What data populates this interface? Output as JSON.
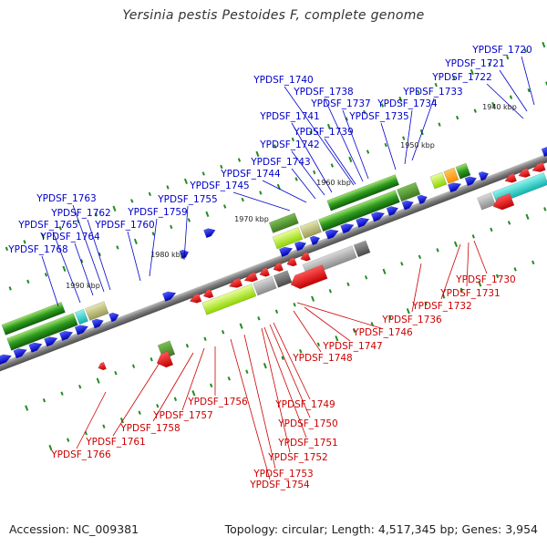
{
  "title": "Yersinia pestis Pestoides F, complete genome",
  "footer": {
    "accession": "Accession: NC_009381",
    "summary": "Topology: circular; Length: 4,517,345 bp; Genes: 3,954"
  },
  "colors": {
    "forward_label": "#0000cc",
    "reverse_label": "#cc0000",
    "forward_gene": "#0010ee",
    "reverse_gene": "#ee0000",
    "backbone": "#8a8a8a",
    "tick": "#228b22"
  },
  "scale": {
    "unit": "kbp",
    "ticks": [
      "1940 kbp",
      "1950 kbp",
      "1960 kbp",
      "1970 kbp",
      "1980 kbp",
      "1990 kbp"
    ]
  },
  "forward_genes": [
    "YPDSF_1720",
    "YPDSF_1721",
    "YPDSF_1722",
    "YPDSF_1733",
    "YPDSF_1734",
    "YPDSF_1735",
    "YPDSF_1737",
    "YPDSF_1738",
    "YPDSF_1739",
    "YPDSF_1740",
    "YPDSF_1741",
    "YPDSF_1742",
    "YPDSF_1743",
    "YPDSF_1744",
    "YPDSF_1745",
    "YPDSF_1755",
    "YPDSF_1759",
    "YPDSF_1760",
    "YPDSF_1762",
    "YPDSF_1763",
    "YPDSF_1764",
    "YPDSF_1765",
    "YPDSF_1768"
  ],
  "reverse_genes": [
    "YPDSF_1730",
    "YPDSF_1731",
    "YPDSF_1732",
    "YPDSF_1736",
    "YPDSF_1746",
    "YPDSF_1747",
    "YPDSF_1748",
    "YPDSF_1749",
    "YPDSF_1750",
    "YPDSF_1751",
    "YPDSF_1752",
    "YPDSF_1753",
    "YPDSF_1754",
    "YPDSF_1756",
    "YPDSF_1757",
    "YPDSF_1758",
    "YPDSF_1761",
    "YPDSF_1766"
  ]
}
